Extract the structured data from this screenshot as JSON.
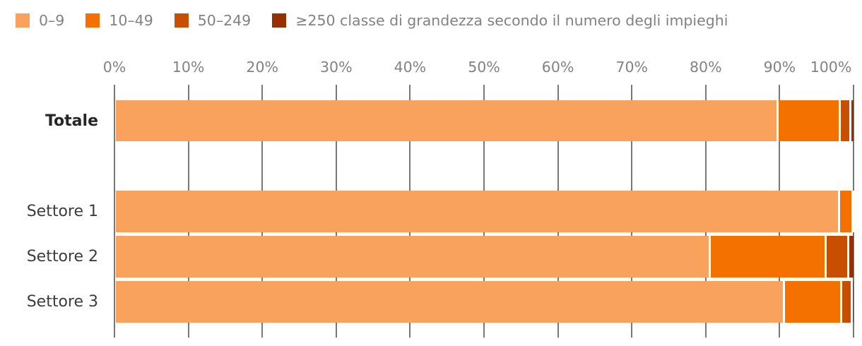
{
  "legend": {
    "items": [
      {
        "label": "0–9",
        "color": "#F9A25E"
      },
      {
        "label": "10–49",
        "color": "#F47100"
      },
      {
        "label": "50–249",
        "color": "#C84E02"
      },
      {
        "label": "≥250 classe di grandezza secondo il numero degli impieghi",
        "color": "#963000"
      }
    ]
  },
  "chart_data": {
    "type": "bar",
    "orientation": "horizontal",
    "stacked": true,
    "unit": "percent",
    "title": "",
    "xlabel": "",
    "ylabel": "",
    "xlim": [
      0,
      100
    ],
    "grid": true,
    "legend_position": "top",
    "legend_note": "classe di grandezza secondo il numero degli impieghi",
    "x_ticks": [
      "0%",
      "10%",
      "20%",
      "30%",
      "40%",
      "50%",
      "60%",
      "70%",
      "80%",
      "90%",
      "100%"
    ],
    "categories": [
      {
        "label": "Totale",
        "bold": true
      },
      {
        "label": "Settore 1",
        "bold": false
      },
      {
        "label": "Settore 2",
        "bold": false
      },
      {
        "label": "Settore 3",
        "bold": false
      }
    ],
    "series": [
      {
        "name": "0–9",
        "color": "#F9A25E",
        "values": [
          89.6,
          97.9,
          80.4,
          90.4
        ]
      },
      {
        "name": "10–49",
        "color": "#F47100",
        "values": [
          8.4,
          1.8,
          15.7,
          7.8
        ]
      },
      {
        "name": "50–249",
        "color": "#C84E02",
        "values": [
          1.4,
          0.2,
          3.0,
          1.4
        ]
      },
      {
        "name": "≥250",
        "color": "#963000",
        "values": [
          0.6,
          0.1,
          0.9,
          0.4
        ]
      }
    ]
  }
}
